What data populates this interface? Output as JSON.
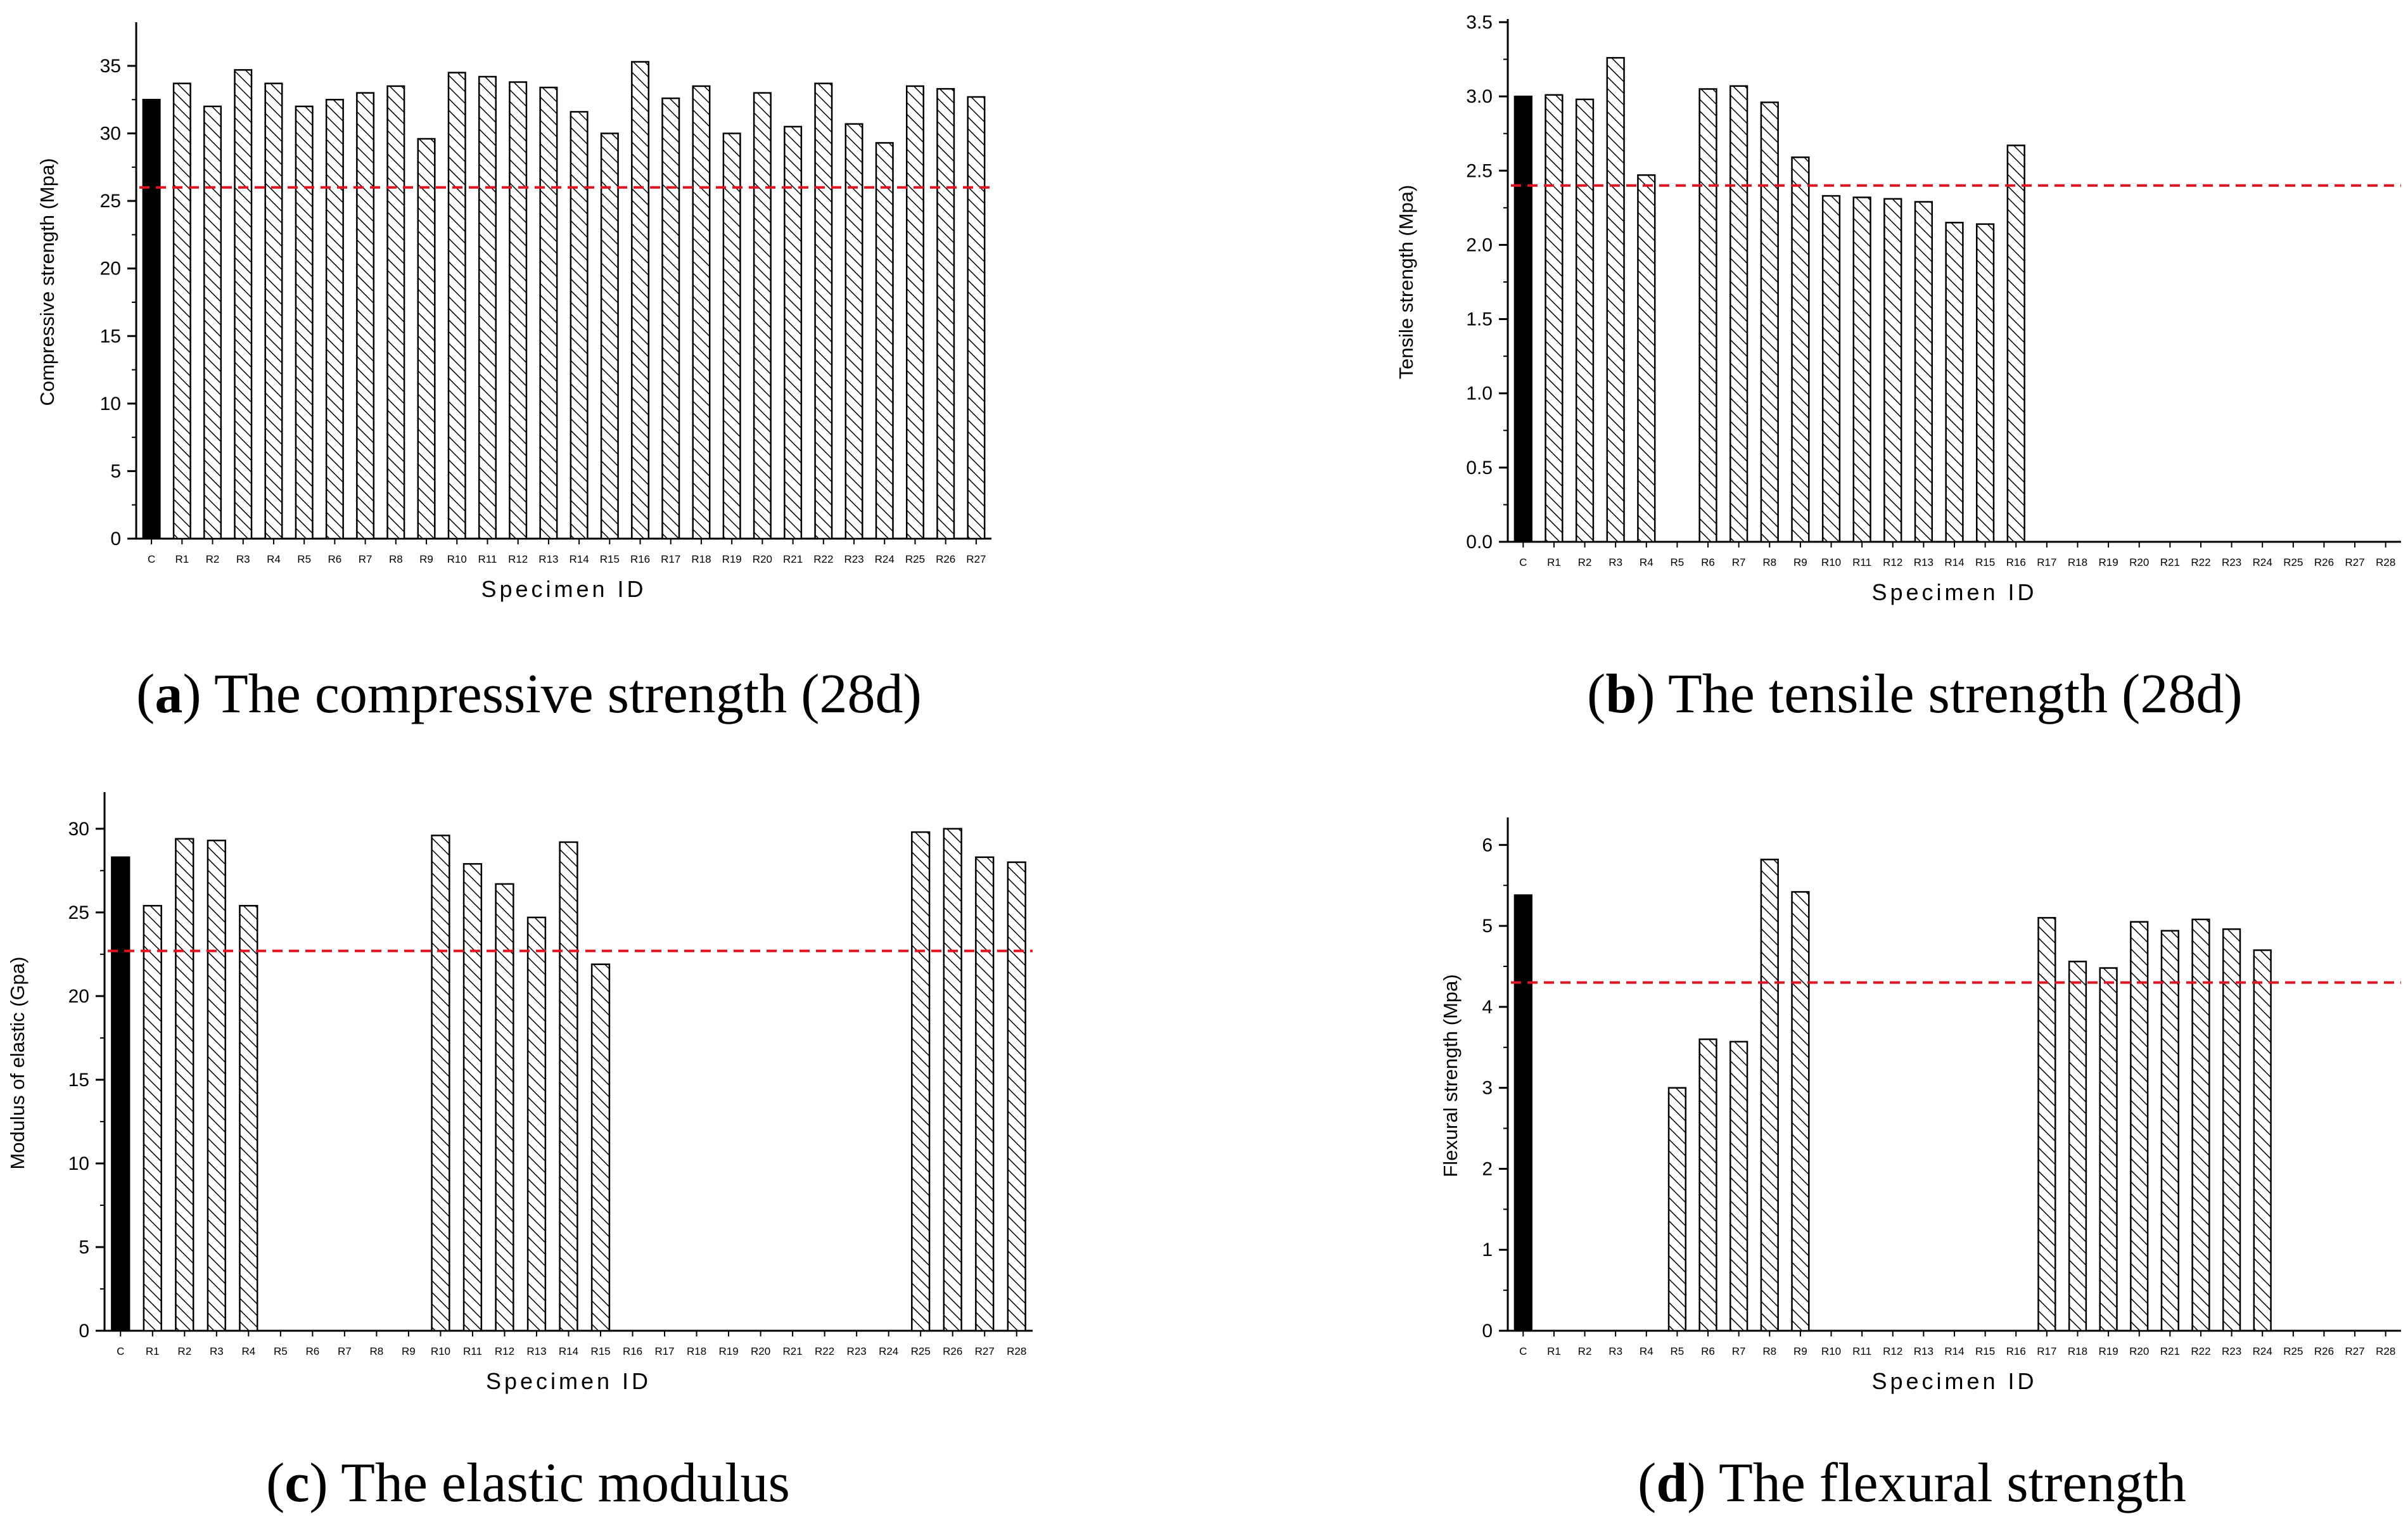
{
  "chart_data": [
    {
      "id": "a",
      "type": "bar",
      "caption_letter": "a",
      "caption_text": "The compressive strength (28d)",
      "xlabel": "Specimen ID",
      "ylabel": "Compressive strength (Mpa)",
      "ylim": [
        0,
        38
      ],
      "yticks": [
        0,
        5,
        10,
        15,
        20,
        25,
        30,
        35
      ],
      "ytick_labels": [
        "0",
        "5",
        "10",
        "15",
        "20",
        "25",
        "30",
        "35"
      ],
      "reference_line": 26,
      "reference_color": "#e0141e",
      "control_color": "#000000",
      "categories": [
        "C",
        "R1",
        "R2",
        "R3",
        "R4",
        "R5",
        "R6",
        "R7",
        "R8",
        "R9",
        "R10",
        "R11",
        "R12",
        "R13",
        "R14",
        "R15",
        "R16",
        "R17",
        "R18",
        "R19",
        "R20",
        "R21",
        "R22",
        "R23",
        "R24",
        "R25",
        "R26",
        "R27"
      ],
      "values": [
        32.5,
        33.7,
        32,
        34.7,
        33.7,
        32,
        32.5,
        33,
        33.5,
        29.6,
        34.5,
        34.2,
        33.8,
        33.4,
        31.6,
        30,
        35.3,
        32.6,
        33.5,
        30,
        33,
        30.5,
        33.7,
        30.7,
        29.3,
        33.5,
        33.3,
        32.7
      ]
    },
    {
      "id": "b",
      "type": "bar",
      "caption_letter": "b",
      "caption_text": "The tensile strength (28d)",
      "xlabel": "Specimen ID",
      "ylabel": "Tensile strength (Mpa)",
      "ylim": [
        0,
        3.5
      ],
      "yticks": [
        0,
        0.5,
        1,
        1.5,
        2,
        2.5,
        3,
        3.5
      ],
      "ytick_labels": [
        "0.0",
        "0.5",
        "1.0",
        "1.5",
        "2.0",
        "2.5",
        "3.0",
        "3.5"
      ],
      "reference_line": 2.4,
      "reference_color": "#e0141e",
      "control_color": "#000000",
      "categories": [
        "C",
        "R1",
        "R2",
        "R3",
        "R4",
        "R5",
        "R6",
        "R7",
        "R8",
        "R9",
        "R10",
        "R11",
        "R12",
        "R13",
        "R14",
        "R15",
        "R16",
        "R17",
        "R18",
        "R19",
        "R20",
        "R21",
        "R22",
        "R23",
        "R24",
        "R25",
        "R26",
        "R27",
        "R28"
      ],
      "values": [
        3.0,
        3.01,
        2.98,
        3.26,
        2.47,
        null,
        3.05,
        3.07,
        2.96,
        2.59,
        2.33,
        2.32,
        2.31,
        2.29,
        2.15,
        2.14,
        2.67,
        null,
        null,
        null,
        null,
        null,
        null,
        null,
        null,
        null,
        null,
        null,
        null
      ]
    },
    {
      "id": "c",
      "type": "bar",
      "caption_letter": "c",
      "caption_text": "The elastic modulus",
      "xlabel": "Specimen ID",
      "ylabel": "Modulus of elastic (Gpa)",
      "ylim": [
        0,
        32
      ],
      "yticks": [
        0,
        5,
        10,
        15,
        20,
        25,
        30
      ],
      "ytick_labels": [
        "0",
        "5",
        "10",
        "15",
        "20",
        "25",
        "30"
      ],
      "reference_line": 22.7,
      "reference_color": "#e0141e",
      "control_color": "#000000",
      "categories": [
        "C",
        "R1",
        "R2",
        "R3",
        "R4",
        "R5",
        "R6",
        "R7",
        "R8",
        "R9",
        "R10",
        "R11",
        "R12",
        "R13",
        "R14",
        "R15",
        "R16",
        "R17",
        "R18",
        "R19",
        "R20",
        "R21",
        "R22",
        "R23",
        "R24",
        "R25",
        "R26",
        "R27",
        "R28"
      ],
      "values": [
        28.3,
        25.4,
        29.4,
        29.3,
        25.4,
        null,
        null,
        null,
        null,
        null,
        29.6,
        27.9,
        26.7,
        24.7,
        29.2,
        21.9,
        null,
        null,
        null,
        null,
        null,
        null,
        null,
        null,
        null,
        29.8,
        30,
        28.3,
        28
      ]
    },
    {
      "id": "d",
      "type": "bar",
      "caption_letter": "d",
      "caption_text": "The flexural strength",
      "xlabel": "Specimen ID",
      "ylabel": "Flexural strength (Mpa)",
      "ylim": [
        0,
        6.3
      ],
      "yticks": [
        0,
        1,
        2,
        3,
        4,
        5,
        6
      ],
      "ytick_labels": [
        "0",
        "1",
        "2",
        "3",
        "4",
        "5",
        "6"
      ],
      "reference_line": 4.3,
      "reference_color": "#e0141e",
      "control_color": "#000000",
      "categories": [
        "C",
        "R1",
        "R2",
        "R3",
        "R4",
        "R5",
        "R6",
        "R7",
        "R8",
        "R9",
        "R10",
        "R11",
        "R12",
        "R13",
        "R14",
        "R15",
        "R16",
        "R17",
        "R18",
        "R19",
        "R20",
        "R21",
        "R22",
        "R23",
        "R24",
        "R25",
        "R26",
        "R27",
        "R28"
      ],
      "values": [
        5.38,
        null,
        null,
        null,
        null,
        3.0,
        3.6,
        3.57,
        5.82,
        5.42,
        null,
        null,
        null,
        null,
        null,
        null,
        null,
        5.1,
        4.56,
        4.48,
        5.05,
        4.94,
        5.08,
        4.96,
        4.7,
        null,
        null,
        null,
        null
      ]
    }
  ]
}
